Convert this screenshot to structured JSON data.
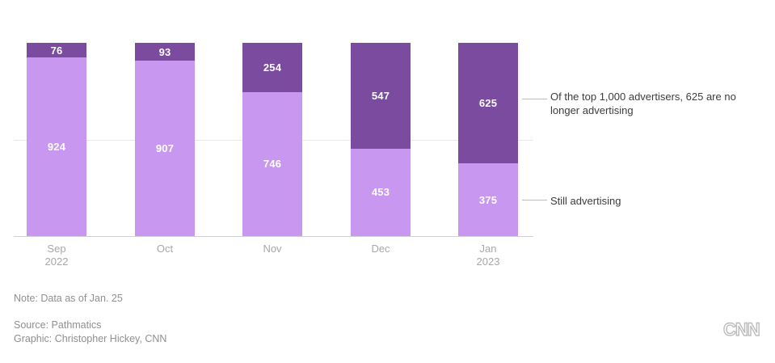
{
  "chart_data": {
    "type": "bar",
    "stacked": true,
    "title": "",
    "xlabel": "",
    "ylabel": "",
    "ylim": [
      0,
      1000
    ],
    "gridlines": [
      500
    ],
    "grid": true,
    "legend_position": "right-annotations",
    "categories": [
      [
        "Sep",
        "2022"
      ],
      [
        "Oct"
      ],
      [
        "Nov"
      ],
      [
        "Dec"
      ],
      [
        "Jan",
        "2023"
      ]
    ],
    "series": [
      {
        "name": "Still advertising",
        "color": "#c897f0",
        "values": [
          924,
          907,
          746,
          453,
          375
        ]
      },
      {
        "name": "No longer advertising",
        "color": "#7a4b9e",
        "values": [
          76,
          93,
          254,
          547,
          625
        ]
      }
    ]
  },
  "annotations": {
    "no_longer_text": "Of the top 1,000 advertisers, 625 are no longer advertising",
    "still_text": "Still advertising"
  },
  "footer": {
    "note": "Note: Data as of Jan. 25",
    "source": "Source: Pathmatics",
    "graphic": "Graphic: Christopher Hickey, CNN"
  },
  "logo": {
    "text": "CNN"
  },
  "colors": {
    "still": "#c897f0",
    "no_longer": "#7a4b9e",
    "gridline": "#e9e7ec",
    "axis": "#d0ced2",
    "tick_text": "#a9a6ac",
    "annotation_text": "#3c3c3c",
    "footer_text": "#8f8f8f",
    "logo_gray": "#bcbcbc",
    "bar_label": "#ffffff"
  }
}
